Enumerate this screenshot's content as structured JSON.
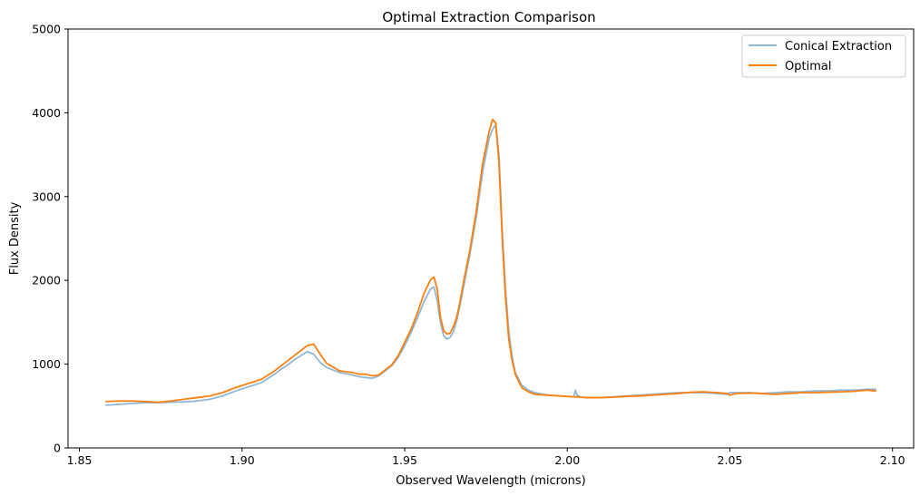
{
  "chart_data": {
    "type": "line",
    "title": "Optimal Extraction Comparison",
    "xlabel": "Observed Wavelength (microns)",
    "ylabel": "Flux Density",
    "xlim": [
      1.8465,
      2.1065
    ],
    "ylim": [
      0,
      5000
    ],
    "x_ticks": [
      1.85,
      1.9,
      1.95,
      2.0,
      2.05,
      2.1
    ],
    "x_tick_labels": [
      "1.85",
      "1.90",
      "1.95",
      "2.00",
      "2.05",
      "2.10"
    ],
    "y_ticks": [
      0,
      1000,
      2000,
      3000,
      4000,
      5000
    ],
    "y_tick_labels": [
      "0",
      "1000",
      "2000",
      "3000",
      "4000",
      "5000"
    ],
    "grid": false,
    "legend_position": "top-right",
    "series": [
      {
        "name": "Conical Extraction",
        "color": "#8fb7d6",
        "x": [
          1.858,
          1.862,
          1.866,
          1.87,
          1.874,
          1.878,
          1.882,
          1.886,
          1.89,
          1.894,
          1.898,
          1.902,
          1.906,
          1.91,
          1.912,
          1.914,
          1.916,
          1.918,
          1.92,
          1.922,
          1.924,
          1.926,
          1.93,
          1.934,
          1.936,
          1.938,
          1.94,
          1.942,
          1.944,
          1.946,
          1.948,
          1.95,
          1.952,
          1.954,
          1.956,
          1.958,
          1.959,
          1.96,
          1.961,
          1.962,
          1.963,
          1.964,
          1.965,
          1.966,
          1.967,
          1.968,
          1.97,
          1.972,
          1.974,
          1.976,
          1.977,
          1.978,
          1.979,
          1.98,
          1.981,
          1.982,
          1.983,
          1.984,
          1.986,
          1.988,
          1.99,
          1.994,
          1.998,
          2.002,
          2.0025,
          2.003,
          2.004,
          2.006,
          2.01,
          2.014,
          2.018,
          2.022,
          2.026,
          2.03,
          2.034,
          2.038,
          2.042,
          2.046,
          2.049,
          2.05,
          2.052,
          2.056,
          2.06,
          2.064,
          2.068,
          2.072,
          2.076,
          2.08,
          2.084,
          2.088,
          2.092,
          2.095
        ],
        "y": [
          510,
          520,
          530,
          540,
          540,
          545,
          550,
          560,
          580,
          620,
          680,
          730,
          780,
          880,
          940,
          990,
          1050,
          1100,
          1150,
          1120,
          1020,
          960,
          900,
          870,
          850,
          840,
          830,
          860,
          920,
          980,
          1080,
          1220,
          1380,
          1560,
          1750,
          1900,
          1920,
          1760,
          1500,
          1340,
          1300,
          1320,
          1390,
          1520,
          1700,
          1900,
          2300,
          2750,
          3300,
          3700,
          3800,
          3860,
          3500,
          2600,
          1900,
          1400,
          1100,
          900,
          750,
          690,
          660,
          630,
          620,
          610,
          690,
          630,
          610,
          600,
          600,
          610,
          620,
          630,
          640,
          650,
          660,
          660,
          660,
          650,
          640,
          660,
          660,
          660,
          650,
          660,
          670,
          670,
          680,
          680,
          690,
          690,
          700,
          700
        ]
      },
      {
        "name": "Optimal",
        "color": "#ff7f0e",
        "x": [
          1.858,
          1.862,
          1.866,
          1.87,
          1.874,
          1.878,
          1.882,
          1.886,
          1.89,
          1.894,
          1.898,
          1.902,
          1.906,
          1.91,
          1.912,
          1.914,
          1.916,
          1.918,
          1.92,
          1.922,
          1.924,
          1.926,
          1.93,
          1.934,
          1.936,
          1.938,
          1.94,
          1.942,
          1.944,
          1.946,
          1.948,
          1.95,
          1.952,
          1.954,
          1.956,
          1.958,
          1.959,
          1.96,
          1.961,
          1.962,
          1.963,
          1.964,
          1.965,
          1.966,
          1.967,
          1.968,
          1.97,
          1.972,
          1.974,
          1.976,
          1.977,
          1.978,
          1.979,
          1.98,
          1.981,
          1.982,
          1.983,
          1.984,
          1.986,
          1.988,
          1.99,
          1.994,
          1.998,
          2.002,
          2.0025,
          2.003,
          2.004,
          2.006,
          2.01,
          2.014,
          2.018,
          2.022,
          2.026,
          2.03,
          2.034,
          2.038,
          2.042,
          2.046,
          2.049,
          2.05,
          2.052,
          2.056,
          2.06,
          2.064,
          2.068,
          2.072,
          2.076,
          2.08,
          2.084,
          2.088,
          2.092,
          2.095
        ],
        "y": [
          555,
          560,
          560,
          555,
          545,
          560,
          580,
          600,
          620,
          660,
          720,
          770,
          820,
          920,
          980,
          1040,
          1100,
          1160,
          1220,
          1240,
          1120,
          1010,
          920,
          900,
          880,
          880,
          860,
          870,
          930,
          990,
          1100,
          1260,
          1420,
          1620,
          1850,
          2010,
          2040,
          1900,
          1560,
          1400,
          1360,
          1370,
          1450,
          1560,
          1740,
          1960,
          2350,
          2820,
          3400,
          3780,
          3920,
          3880,
          3400,
          2500,
          1800,
          1300,
          1050,
          880,
          720,
          670,
          640,
          630,
          620,
          610,
          610,
          610,
          605,
          600,
          600,
          605,
          615,
          620,
          630,
          640,
          650,
          665,
          670,
          660,
          650,
          630,
          650,
          655,
          650,
          640,
          650,
          660,
          660,
          665,
          670,
          675,
          690,
          680
        ]
      }
    ]
  }
}
